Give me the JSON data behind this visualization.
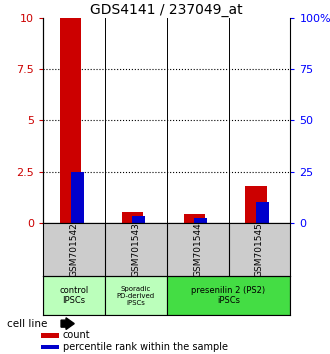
{
  "title": "GDS4141 / 237049_at",
  "samples": [
    "GSM701542",
    "GSM701543",
    "GSM701544",
    "GSM701545"
  ],
  "count_values": [
    10.0,
    0.55,
    0.45,
    1.8
  ],
  "percentile_values": [
    2.5,
    0.35,
    0.25,
    1.0
  ],
  "ylim_left": [
    0,
    10
  ],
  "ylim_right": [
    0,
    100
  ],
  "yticks_left": [
    0,
    2.5,
    5.0,
    7.5,
    10
  ],
  "yticks_right": [
    0,
    25,
    50,
    75,
    100
  ],
  "count_color": "#cc0000",
  "percentile_color": "#0000cc",
  "bar_width": 0.35,
  "cell_line_label": "cell line",
  "legend_count": "count",
  "legend_percentile": "percentile rank within the sample",
  "background_color": "#ffffff",
  "plot_bg_color": "#ffffff",
  "label_row_bg": "#cccccc",
  "group_bg_light": "#bbffbb",
  "group_bg_green": "#44dd44",
  "title_fontsize": 10,
  "tick_fontsize": 8,
  "sample_fontsize": 6.5,
  "group_fontsize": 6.0
}
